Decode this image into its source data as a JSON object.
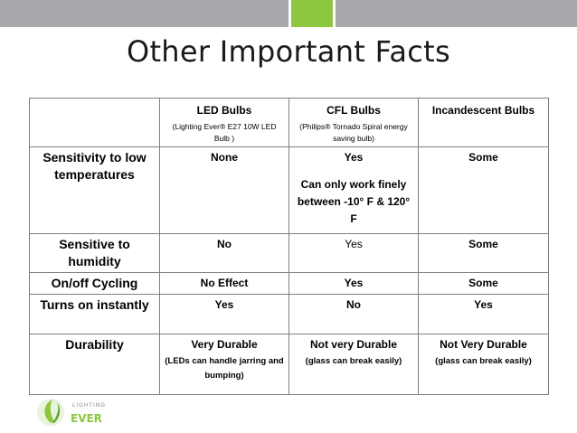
{
  "title": "Other Important Facts",
  "logo": {
    "small": "LIGHTING",
    "main": "EVER"
  },
  "table": {
    "columns": [
      {
        "label": "",
        "sub": ""
      },
      {
        "label": "LED Bulbs",
        "sub": "(Lighting Ever® E27 10W LED Bulb )"
      },
      {
        "label": "CFL Bulbs",
        "sub": "(Philips® Tornado Spiral energy saving bulb)"
      },
      {
        "label": "Incandescent Bulbs",
        "sub": ""
      }
    ],
    "rows": [
      {
        "label": "Sensitivity to low temperatures",
        "led": "None",
        "cfl": "Yes",
        "cfl_note": "Can only work finely between -10° F & 120° F",
        "inc": "Some"
      },
      {
        "label": "Sensitive to humidity",
        "led": "No",
        "cfl": "Yes",
        "inc": "Some"
      },
      {
        "label": "On/off Cycling",
        "led": "No Effect",
        "cfl": "Yes",
        "inc": "Some"
      },
      {
        "label": "Turns on instantly",
        "led": "Yes",
        "cfl": "No",
        "inc": "Yes"
      },
      {
        "label": "Durability",
        "led": "Very Durable",
        "led_note": "(LEDs can handle jarring and bumping)",
        "cfl": "Not very Durable",
        "cfl_note": "(glass can break easily)",
        "inc": "Not Very Durable",
        "inc_note": "(glass can break easily)"
      }
    ]
  }
}
